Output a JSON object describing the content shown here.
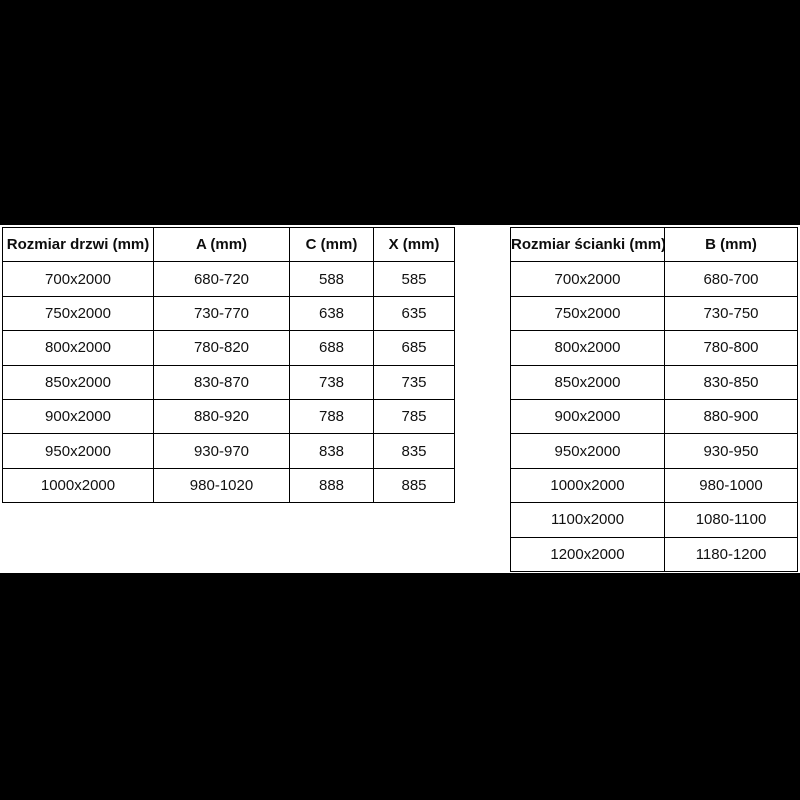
{
  "colors": {
    "page_background": "#000000",
    "band_background": "#ffffff",
    "table_border": "#000000",
    "text": "#111111"
  },
  "chart_data": [
    {
      "type": "table",
      "title": "",
      "name": "door-size-table",
      "headers": [
        "Rozmiar drzwi (mm)",
        "A (mm)",
        "C (mm)",
        "X (mm)"
      ],
      "rows": [
        [
          "700x2000",
          "680-720",
          "588",
          "585"
        ],
        [
          "750x2000",
          "730-770",
          "638",
          "635"
        ],
        [
          "800x2000",
          "780-820",
          "688",
          "685"
        ],
        [
          "850x2000",
          "830-870",
          "738",
          "735"
        ],
        [
          "900x2000",
          "880-920",
          "788",
          "785"
        ],
        [
          "950x2000",
          "930-970",
          "838",
          "835"
        ],
        [
          "1000x2000",
          "980-1020",
          "888",
          "885"
        ]
      ]
    },
    {
      "type": "table",
      "title": "",
      "name": "wall-size-table",
      "headers": [
        "Rozmiar ścianki (mm)",
        "B (mm)"
      ],
      "rows": [
        [
          "700x2000",
          "680-700"
        ],
        [
          "750x2000",
          "730-750"
        ],
        [
          "800x2000",
          "780-800"
        ],
        [
          "850x2000",
          "830-850"
        ],
        [
          "900x2000",
          "880-900"
        ],
        [
          "950x2000",
          "930-950"
        ],
        [
          "1000x2000",
          "980-1000"
        ],
        [
          "1100x2000",
          "1080-1100"
        ],
        [
          "1200x2000",
          "1180-1200"
        ]
      ]
    }
  ]
}
